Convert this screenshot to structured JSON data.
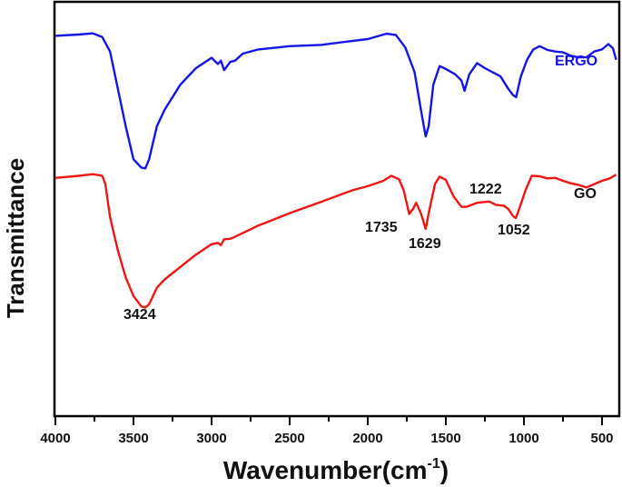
{
  "chart_data": {
    "type": "line",
    "title": "",
    "xlabel": "Wavenumber(cm-1)",
    "xlabel_main": "Wavenumber(cm",
    "xlabel_sup": "-1",
    "xlabel_close": ")",
    "ylabel": "Transmittance",
    "xlim": [
      4000,
      400
    ],
    "x_reversed": true,
    "y_ticks_shown": false,
    "grid": false,
    "x_ticks": [
      4000,
      3500,
      3000,
      2500,
      2000,
      1500,
      1000,
      500
    ],
    "x_minor_ticks": [
      3750,
      3250,
      2750,
      2250,
      1750,
      1250,
      750
    ],
    "series": [
      {
        "name": "ERGO",
        "color": "#1414e6",
        "label_position": "right, above trace end",
        "points": [
          [
            4000,
            0.918
          ],
          [
            3850,
            0.921
          ],
          [
            3760,
            0.924
          ],
          [
            3700,
            0.915
          ],
          [
            3650,
            0.88
          ],
          [
            3600,
            0.79
          ],
          [
            3550,
            0.7
          ],
          [
            3500,
            0.62
          ],
          [
            3450,
            0.6
          ],
          [
            3424,
            0.598
          ],
          [
            3400,
            0.62
          ],
          [
            3350,
            0.7
          ],
          [
            3300,
            0.74
          ],
          [
            3200,
            0.8
          ],
          [
            3100,
            0.84
          ],
          [
            3000,
            0.865
          ],
          [
            2960,
            0.85
          ],
          [
            2940,
            0.858
          ],
          [
            2920,
            0.835
          ],
          [
            2880,
            0.855
          ],
          [
            2850,
            0.858
          ],
          [
            2800,
            0.875
          ],
          [
            2700,
            0.885
          ],
          [
            2500,
            0.893
          ],
          [
            2300,
            0.896
          ],
          [
            2000,
            0.91
          ],
          [
            1880,
            0.923
          ],
          [
            1820,
            0.92
          ],
          [
            1760,
            0.89
          ],
          [
            1700,
            0.83
          ],
          [
            1660,
            0.74
          ],
          [
            1629,
            0.675
          ],
          [
            1610,
            0.7
          ],
          [
            1580,
            0.8
          ],
          [
            1540,
            0.845
          ],
          [
            1500,
            0.838
          ],
          [
            1440,
            0.825
          ],
          [
            1400,
            0.81
          ],
          [
            1380,
            0.785
          ],
          [
            1350,
            0.825
          ],
          [
            1300,
            0.852
          ],
          [
            1250,
            0.84
          ],
          [
            1150,
            0.82
          ],
          [
            1100,
            0.79
          ],
          [
            1070,
            0.775
          ],
          [
            1050,
            0.77
          ],
          [
            1020,
            0.82
          ],
          [
            980,
            0.86
          ],
          [
            940,
            0.885
          ],
          [
            900,
            0.893
          ],
          [
            850,
            0.884
          ],
          [
            800,
            0.88
          ],
          [
            750,
            0.878
          ],
          [
            700,
            0.87
          ],
          [
            650,
            0.866
          ],
          [
            600,
            0.866
          ],
          [
            550,
            0.88
          ],
          [
            500,
            0.885
          ],
          [
            460,
            0.898
          ],
          [
            430,
            0.888
          ],
          [
            410,
            0.86
          ]
        ]
      },
      {
        "name": "GO",
        "color": "#f01414",
        "label_position": "right, below trace end",
        "points": [
          [
            4000,
            0.575
          ],
          [
            3850,
            0.58
          ],
          [
            3760,
            0.584
          ],
          [
            3700,
            0.58
          ],
          [
            3680,
            0.56
          ],
          [
            3650,
            0.48
          ],
          [
            3600,
            0.4
          ],
          [
            3550,
            0.335
          ],
          [
            3500,
            0.29
          ],
          [
            3450,
            0.265
          ],
          [
            3424,
            0.262
          ],
          [
            3400,
            0.27
          ],
          [
            3350,
            0.31
          ],
          [
            3300,
            0.33
          ],
          [
            3200,
            0.36
          ],
          [
            3100,
            0.39
          ],
          [
            3000,
            0.415
          ],
          [
            2960,
            0.418
          ],
          [
            2940,
            0.413
          ],
          [
            2920,
            0.427
          ],
          [
            2880,
            0.428
          ],
          [
            2850,
            0.433
          ],
          [
            2700,
            0.46
          ],
          [
            2500,
            0.49
          ],
          [
            2300,
            0.517
          ],
          [
            2100,
            0.545
          ],
          [
            2000,
            0.555
          ],
          [
            1900,
            0.568
          ],
          [
            1850,
            0.58
          ],
          [
            1800,
            0.572
          ],
          [
            1770,
            0.545
          ],
          [
            1735,
            0.488
          ],
          [
            1710,
            0.5
          ],
          [
            1690,
            0.515
          ],
          [
            1660,
            0.49
          ],
          [
            1629,
            0.452
          ],
          [
            1610,
            0.49
          ],
          [
            1570,
            0.56
          ],
          [
            1540,
            0.578
          ],
          [
            1500,
            0.57
          ],
          [
            1450,
            0.53
          ],
          [
            1400,
            0.505
          ],
          [
            1370,
            0.505
          ],
          [
            1300,
            0.515
          ],
          [
            1222,
            0.518
          ],
          [
            1180,
            0.51
          ],
          [
            1130,
            0.508
          ],
          [
            1100,
            0.5
          ],
          [
            1070,
            0.483
          ],
          [
            1052,
            0.478
          ],
          [
            1030,
            0.5
          ],
          [
            990,
            0.545
          ],
          [
            950,
            0.58
          ],
          [
            900,
            0.579
          ],
          [
            850,
            0.574
          ],
          [
            800,
            0.575
          ],
          [
            750,
            0.568
          ],
          [
            700,
            0.562
          ],
          [
            650,
            0.558
          ],
          [
            600,
            0.552
          ],
          [
            550,
            0.56
          ],
          [
            500,
            0.568
          ],
          [
            450,
            0.574
          ],
          [
            410,
            0.583
          ]
        ]
      }
    ],
    "annotations": [
      {
        "text": "3424",
        "wavenumber": 3424,
        "series": "GO"
      },
      {
        "text": "1735",
        "wavenumber": 1735,
        "series": "GO"
      },
      {
        "text": "1629",
        "wavenumber": 1629,
        "series": "GO"
      },
      {
        "text": "1222",
        "wavenumber": 1222,
        "series": "GO"
      },
      {
        "text": "1052",
        "wavenumber": 1052,
        "series": "GO"
      }
    ],
    "legend": {
      "position": "inline labels at right",
      "entries": [
        "ERGO",
        "GO"
      ]
    }
  }
}
